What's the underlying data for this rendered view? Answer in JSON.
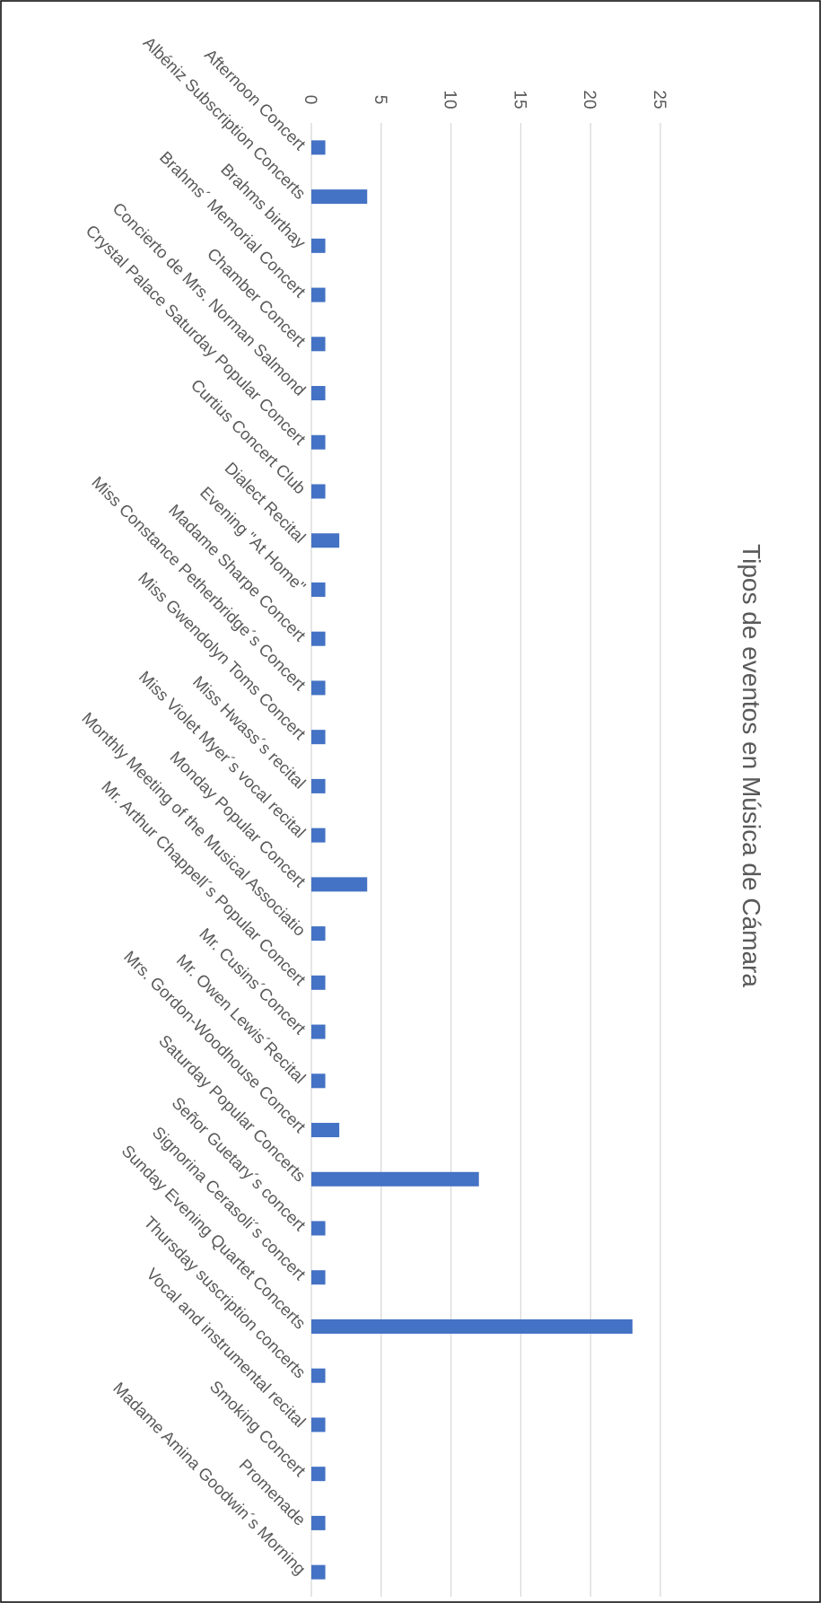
{
  "chart_data": {
    "type": "bar",
    "title": "Tipos de eventos en Música de Cámara",
    "xlabel": "",
    "ylabel": "",
    "ylim": [
      0,
      25
    ],
    "yticks": [
      0,
      5,
      10,
      15,
      20,
      25
    ],
    "grid": true,
    "bar_color": "#4472C4",
    "categories": [
      "Afternoon Concert",
      "Albéniz Subscription Concerts",
      "Brahms birthay",
      "Brahms´ Memorial Concert",
      "Chamber Concert",
      "Concierto de Mrs. Norman Salmond",
      "Crystal Palace Saturday Popular Concert",
      "Curtius Concert Club",
      "Dialect Recital",
      "Evening \"At Home\"",
      "Madame Sharpe Concert",
      "Miss Constance Petherbridge´s Concert",
      "Miss Gwendolyn Toms Concert",
      "Miss Hwass´s recital",
      "Miss Violet Myer´s vocal recital",
      "Monday Popular Concert",
      "Monthly Meeting of the Musical Associatio",
      "Mr. Arthur Chappell´s Popular Concert",
      "Mr. Cusins´Concert",
      "Mr. Owen Lewis´Recital",
      "Mrs. Gordon-Woodhouse Concert",
      "Saturday Popular Concerts",
      "Señor Guetary´s concert",
      "Signorina Cerasoli´s concert",
      "Sunday Evening Quartet Concerts",
      "Thursday suscription concerts",
      "Vocal and instrumental recital",
      "Smoking Concert",
      "Promenade",
      "Madame Amina Goodwin´s Morning"
    ],
    "values": [
      1,
      4,
      1,
      1,
      1,
      1,
      1,
      1,
      2,
      1,
      1,
      1,
      1,
      1,
      1,
      4,
      1,
      1,
      1,
      1,
      2,
      12,
      1,
      1,
      23,
      1,
      1,
      1,
      1,
      1
    ]
  }
}
